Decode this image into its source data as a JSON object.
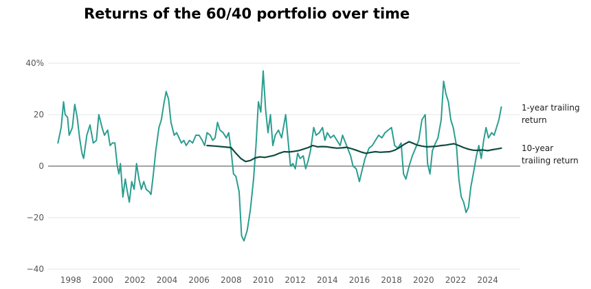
{
  "title": "Returns of the 60/40 portfolio over time",
  "chart_data": {
    "type": "line",
    "title": "Returns of the 60/40 portfolio over time",
    "ylim": [
      -40,
      40
    ],
    "xlim": [
      1997.1,
      2025.0
    ],
    "grid": true,
    "y_ticks": [
      {
        "value": 40,
        "label": "40%"
      },
      {
        "value": 20,
        "label": "20"
      },
      {
        "value": 0,
        "label": "0"
      },
      {
        "value": -20,
        "label": "−20"
      },
      {
        "value": -40,
        "label": "−40"
      }
    ],
    "x_ticks": [
      {
        "value": 1998,
        "label": "1998"
      },
      {
        "value": 2000,
        "label": "2000"
      },
      {
        "value": 2002,
        "label": "2002"
      },
      {
        "value": 2004,
        "label": "2004"
      },
      {
        "value": 2006,
        "label": "2006"
      },
      {
        "value": 2008,
        "label": "2008"
      },
      {
        "value": 2010,
        "label": "2010"
      },
      {
        "value": 2012,
        "label": "2012"
      },
      {
        "value": 2014,
        "label": "2014"
      },
      {
        "value": 2016,
        "label": "2016"
      },
      {
        "value": 2018,
        "label": "2018"
      },
      {
        "value": 2020,
        "label": "2020"
      },
      {
        "value": 2022,
        "label": "2022"
      },
      {
        "value": 2024,
        "label": "2024"
      }
    ],
    "series": [
      {
        "name": "1-year trailing return",
        "label_lines": [
          "1-year trailing",
          "return"
        ],
        "color": "#2a9d8f",
        "points": [
          [
            1997.2,
            9
          ],
          [
            1997.4,
            15
          ],
          [
            1997.55,
            25
          ],
          [
            1997.65,
            20
          ],
          [
            1997.8,
            19
          ],
          [
            1997.9,
            12
          ],
          [
            1998.1,
            15
          ],
          [
            1998.25,
            24
          ],
          [
            1998.4,
            19
          ],
          [
            1998.55,
            11
          ],
          [
            1998.7,
            5
          ],
          [
            1998.8,
            3
          ],
          [
            1999.0,
            12
          ],
          [
            1999.2,
            16
          ],
          [
            1999.4,
            9
          ],
          [
            1999.6,
            10
          ],
          [
            1999.75,
            20
          ],
          [
            1999.95,
            15
          ],
          [
            2000.1,
            12
          ],
          [
            2000.3,
            14
          ],
          [
            2000.45,
            8
          ],
          [
            2000.6,
            9
          ],
          [
            2000.75,
            9
          ],
          [
            2000.9,
            0
          ],
          [
            2001.0,
            -3
          ],
          [
            2001.1,
            1
          ],
          [
            2001.25,
            -12
          ],
          [
            2001.4,
            -5
          ],
          [
            2001.5,
            -9
          ],
          [
            2001.65,
            -14
          ],
          [
            2001.8,
            -6
          ],
          [
            2001.95,
            -9
          ],
          [
            2002.1,
            1
          ],
          [
            2002.25,
            -5
          ],
          [
            2002.4,
            -9
          ],
          [
            2002.55,
            -6
          ],
          [
            2002.7,
            -9
          ],
          [
            2002.9,
            -10
          ],
          [
            2003.0,
            -11
          ],
          [
            2003.15,
            -3
          ],
          [
            2003.3,
            6
          ],
          [
            2003.5,
            15
          ],
          [
            2003.65,
            18
          ],
          [
            2003.8,
            24
          ],
          [
            2003.95,
            29
          ],
          [
            2004.1,
            26
          ],
          [
            2004.25,
            17
          ],
          [
            2004.45,
            12
          ],
          [
            2004.6,
            13
          ],
          [
            2004.75,
            11
          ],
          [
            2004.9,
            9
          ],
          [
            2005.05,
            10
          ],
          [
            2005.2,
            8
          ],
          [
            2005.4,
            10
          ],
          [
            2005.6,
            9
          ],
          [
            2005.8,
            12
          ],
          [
            2006.0,
            12
          ],
          [
            2006.2,
            10
          ],
          [
            2006.35,
            8
          ],
          [
            2006.5,
            13
          ],
          [
            2006.7,
            12
          ],
          [
            2006.85,
            10
          ],
          [
            2007.0,
            11
          ],
          [
            2007.15,
            17
          ],
          [
            2007.3,
            14
          ],
          [
            2007.5,
            13
          ],
          [
            2007.7,
            11
          ],
          [
            2007.85,
            13
          ],
          [
            2008.0,
            6
          ],
          [
            2008.15,
            -3
          ],
          [
            2008.3,
            -4
          ],
          [
            2008.5,
            -10
          ],
          [
            2008.65,
            -27
          ],
          [
            2008.8,
            -29
          ],
          [
            2009.0,
            -25
          ],
          [
            2009.2,
            -17
          ],
          [
            2009.4,
            -5
          ],
          [
            2009.55,
            8
          ],
          [
            2009.7,
            25
          ],
          [
            2009.85,
            21
          ],
          [
            2010.0,
            37
          ],
          [
            2010.15,
            22
          ],
          [
            2010.3,
            13
          ],
          [
            2010.45,
            20
          ],
          [
            2010.6,
            8
          ],
          [
            2010.75,
            12
          ],
          [
            2010.95,
            14
          ],
          [
            2011.15,
            11
          ],
          [
            2011.4,
            20
          ],
          [
            2011.55,
            10
          ],
          [
            2011.7,
            0
          ],
          [
            2011.85,
            1
          ],
          [
            2012.0,
            -1
          ],
          [
            2012.15,
            5
          ],
          [
            2012.3,
            3
          ],
          [
            2012.5,
            4
          ],
          [
            2012.65,
            -1
          ],
          [
            2012.8,
            2
          ],
          [
            2012.95,
            6
          ],
          [
            2013.15,
            15
          ],
          [
            2013.3,
            12
          ],
          [
            2013.5,
            13
          ],
          [
            2013.7,
            15
          ],
          [
            2013.85,
            10
          ],
          [
            2014.0,
            13
          ],
          [
            2014.2,
            11
          ],
          [
            2014.4,
            12
          ],
          [
            2014.6,
            10
          ],
          [
            2014.8,
            8
          ],
          [
            2014.95,
            12
          ],
          [
            2015.2,
            8
          ],
          [
            2015.45,
            4
          ],
          [
            2015.6,
            0
          ],
          [
            2015.8,
            -1
          ],
          [
            2016.0,
            -6
          ],
          [
            2016.15,
            -2
          ],
          [
            2016.35,
            3
          ],
          [
            2016.6,
            7
          ],
          [
            2016.8,
            8
          ],
          [
            2017.0,
            10
          ],
          [
            2017.2,
            12
          ],
          [
            2017.4,
            11
          ],
          [
            2017.6,
            13
          ],
          [
            2017.8,
            14
          ],
          [
            2018.0,
            15
          ],
          [
            2018.2,
            8
          ],
          [
            2018.4,
            7
          ],
          [
            2018.6,
            9
          ],
          [
            2018.75,
            -3
          ],
          [
            2018.9,
            -5
          ],
          [
            2019.1,
            0
          ],
          [
            2019.3,
            4
          ],
          [
            2019.5,
            7
          ],
          [
            2019.7,
            10
          ],
          [
            2019.9,
            18
          ],
          [
            2020.1,
            20
          ],
          [
            2020.25,
            1
          ],
          [
            2020.4,
            -3
          ],
          [
            2020.55,
            6
          ],
          [
            2020.75,
            9
          ],
          [
            2020.9,
            11
          ],
          [
            2021.1,
            18
          ],
          [
            2021.25,
            33
          ],
          [
            2021.4,
            28
          ],
          [
            2021.55,
            25
          ],
          [
            2021.7,
            18
          ],
          [
            2021.85,
            15
          ],
          [
            2022.05,
            8
          ],
          [
            2022.2,
            -5
          ],
          [
            2022.35,
            -12
          ],
          [
            2022.5,
            -14
          ],
          [
            2022.65,
            -18
          ],
          [
            2022.8,
            -16
          ],
          [
            2022.95,
            -8
          ],
          [
            2023.1,
            -3
          ],
          [
            2023.3,
            4
          ],
          [
            2023.45,
            8
          ],
          [
            2023.6,
            3
          ],
          [
            2023.75,
            10
          ],
          [
            2023.9,
            15
          ],
          [
            2024.05,
            11
          ],
          [
            2024.25,
            13
          ],
          [
            2024.4,
            12
          ],
          [
            2024.55,
            15
          ],
          [
            2024.7,
            18
          ],
          [
            2024.85,
            23
          ]
        ]
      },
      {
        "name": "10-year trailing return",
        "label_lines": [
          "10-year",
          "trailing return"
        ],
        "color": "#0e4a3e",
        "points": [
          [
            2006.5,
            8
          ],
          [
            2007.0,
            7.8
          ],
          [
            2007.5,
            7.5
          ],
          [
            2008.0,
            7.2
          ],
          [
            2008.3,
            5
          ],
          [
            2008.6,
            3
          ],
          [
            2008.9,
            1.8
          ],
          [
            2009.2,
            2.2
          ],
          [
            2009.5,
            3.2
          ],
          [
            2009.8,
            3.6
          ],
          [
            2010.1,
            3.4
          ],
          [
            2010.4,
            3.8
          ],
          [
            2010.7,
            4.2
          ],
          [
            2011.0,
            5
          ],
          [
            2011.3,
            5.6
          ],
          [
            2011.6,
            5.5
          ],
          [
            2011.9,
            5.7
          ],
          [
            2012.2,
            6
          ],
          [
            2012.5,
            6.6
          ],
          [
            2012.8,
            7.2
          ],
          [
            2013.1,
            8
          ],
          [
            2013.4,
            7.5
          ],
          [
            2013.7,
            7.6
          ],
          [
            2014.0,
            7.5
          ],
          [
            2014.3,
            7.2
          ],
          [
            2014.6,
            7
          ],
          [
            2014.9,
            7.1
          ],
          [
            2015.2,
            7.3
          ],
          [
            2015.5,
            6.8
          ],
          [
            2015.8,
            6.2
          ],
          [
            2016.1,
            5.5
          ],
          [
            2016.4,
            5
          ],
          [
            2016.7,
            5.3
          ],
          [
            2017.0,
            5.6
          ],
          [
            2017.3,
            5.4
          ],
          [
            2017.6,
            5.5
          ],
          [
            2017.9,
            5.6
          ],
          [
            2018.2,
            6.2
          ],
          [
            2018.5,
            7.2
          ],
          [
            2018.8,
            8.5
          ],
          [
            2019.1,
            9.5
          ],
          [
            2019.3,
            9
          ],
          [
            2019.6,
            8.2
          ],
          [
            2019.9,
            7.8
          ],
          [
            2020.2,
            7.5
          ],
          [
            2020.5,
            7.6
          ],
          [
            2020.8,
            7.7
          ],
          [
            2021.1,
            8
          ],
          [
            2021.4,
            8.2
          ],
          [
            2021.7,
            8.5
          ],
          [
            2021.9,
            8.7
          ],
          [
            2022.2,
            8
          ],
          [
            2022.5,
            7.2
          ],
          [
            2022.8,
            6.6
          ],
          [
            2023.1,
            6.2
          ],
          [
            2023.4,
            6.1
          ],
          [
            2023.7,
            6.3
          ],
          [
            2024.0,
            6
          ],
          [
            2024.3,
            6.4
          ],
          [
            2024.6,
            6.7
          ],
          [
            2024.85,
            7
          ]
        ]
      }
    ]
  }
}
